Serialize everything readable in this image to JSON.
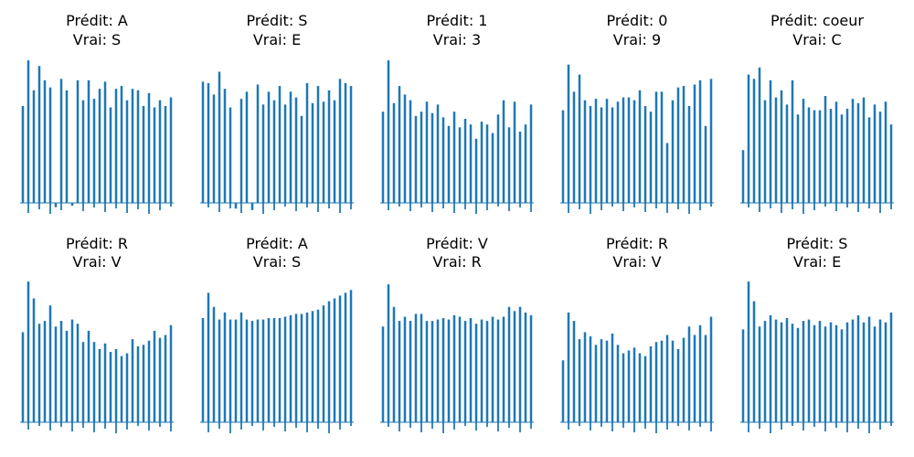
{
  "layout": {
    "rows": 2,
    "cols": 5
  },
  "bar_color": "#1f77b4",
  "chart_data": [
    {
      "type": "bar",
      "title_line1": "Prédit: A",
      "title_line2": "Vrai: S",
      "values": [
        0.68,
        1.0,
        0.79,
        0.96,
        0.86,
        0.81,
        -0.03,
        0.87,
        0.79,
        -0.02,
        0.86,
        0.72,
        0.86,
        0.73,
        0.8,
        0.85,
        0.67,
        0.8,
        0.82,
        0.72,
        0.8,
        0.79,
        0.68,
        0.77,
        0.67,
        0.72,
        0.68,
        0.74
      ]
    },
    {
      "type": "bar",
      "title_line1": "Prédit: S",
      "title_line2": "Vrai: E",
      "values": [
        0.85,
        0.84,
        0.76,
        0.92,
        0.8,
        0.67,
        -0.04,
        0.73,
        0.78,
        -0.05,
        0.83,
        0.69,
        0.78,
        0.72,
        0.82,
        0.69,
        0.78,
        0.74,
        0.61,
        0.84,
        0.7,
        0.82,
        0.71,
        0.79,
        0.72,
        0.87,
        0.84,
        0.82
      ]
    },
    {
      "type": "bar",
      "title_line1": "Prédit: 1",
      "title_line2": "Vrai: 3",
      "values": [
        0.64,
        1.0,
        0.7,
        0.82,
        0.76,
        0.72,
        0.61,
        0.64,
        0.71,
        0.63,
        0.69,
        0.6,
        0.54,
        0.64,
        0.53,
        0.59,
        0.55,
        0.45,
        0.57,
        0.55,
        0.49,
        0.62,
        0.72,
        0.53,
        0.71,
        0.5,
        0.55,
        0.69
      ]
    },
    {
      "type": "bar",
      "title_line1": "Prédit: 0",
      "title_line2": "Vrai: 9",
      "values": [
        0.65,
        0.97,
        0.78,
        0.9,
        0.72,
        0.68,
        0.73,
        0.67,
        0.73,
        0.67,
        0.71,
        0.74,
        0.74,
        0.72,
        0.79,
        0.68,
        0.64,
        0.78,
        0.78,
        0.42,
        0.72,
        0.81,
        0.82,
        0.68,
        0.83,
        0.86,
        0.54,
        0.87
      ]
    },
    {
      "type": "bar",
      "title_line1": "Prédit: coeur",
      "title_line2": "Vrai: C",
      "values": [
        0.37,
        0.9,
        0.87,
        0.95,
        0.72,
        0.86,
        0.74,
        0.79,
        0.69,
        0.86,
        0.62,
        0.73,
        0.67,
        0.65,
        0.65,
        0.75,
        0.66,
        0.71,
        0.62,
        0.66,
        0.73,
        0.7,
        0.74,
        0.6,
        0.69,
        0.64,
        0.71,
        0.55
      ]
    },
    {
      "type": "bar",
      "title_line1": "Prédit: R",
      "title_line2": "Vrai: V",
      "values": [
        0.64,
        1.0,
        0.88,
        0.7,
        0.72,
        0.83,
        0.68,
        0.72,
        0.65,
        0.73,
        0.7,
        0.57,
        0.65,
        0.57,
        0.52,
        0.56,
        0.5,
        0.52,
        0.47,
        0.49,
        0.59,
        0.54,
        0.55,
        0.58,
        0.65,
        0.6,
        0.62,
        0.69
      ]
    },
    {
      "type": "bar",
      "title_line1": "Prédit: A",
      "title_line2": "Vrai: S",
      "values": [
        0.74,
        0.92,
        0.82,
        0.73,
        0.78,
        0.73,
        0.73,
        0.78,
        0.73,
        0.72,
        0.73,
        0.73,
        0.74,
        0.74,
        0.74,
        0.75,
        0.76,
        0.77,
        0.77,
        0.78,
        0.79,
        0.8,
        0.83,
        0.86,
        0.88,
        0.9,
        0.92,
        0.94
      ]
    },
    {
      "type": "bar",
      "title_line1": "Prédit: V",
      "title_line2": "Vrai: R",
      "values": [
        0.68,
        0.98,
        0.82,
        0.72,
        0.75,
        0.72,
        0.77,
        0.77,
        0.72,
        0.72,
        0.73,
        0.74,
        0.73,
        0.76,
        0.75,
        0.72,
        0.74,
        0.7,
        0.73,
        0.72,
        0.75,
        0.73,
        0.75,
        0.82,
        0.79,
        0.82,
        0.78,
        0.76
      ]
    },
    {
      "type": "bar",
      "title_line1": "Prédit: R",
      "title_line2": "Vrai: V",
      "values": [
        0.44,
        0.78,
        0.72,
        0.59,
        0.64,
        0.61,
        0.55,
        0.59,
        0.58,
        0.63,
        0.55,
        0.49,
        0.51,
        0.53,
        0.49,
        0.47,
        0.54,
        0.57,
        0.58,
        0.62,
        0.58,
        0.52,
        0.6,
        0.68,
        0.62,
        0.69,
        0.62,
        0.75
      ]
    },
    {
      "type": "bar",
      "title_line1": "Prédit: S",
      "title_line2": "Vrai: E",
      "values": [
        0.66,
        1.0,
        0.86,
        0.68,
        0.72,
        0.76,
        0.73,
        0.71,
        0.74,
        0.7,
        0.67,
        0.72,
        0.73,
        0.69,
        0.72,
        0.68,
        0.71,
        0.69,
        0.66,
        0.71,
        0.73,
        0.76,
        0.71,
        0.75,
        0.68,
        0.73,
        0.71,
        0.78
      ]
    }
  ]
}
